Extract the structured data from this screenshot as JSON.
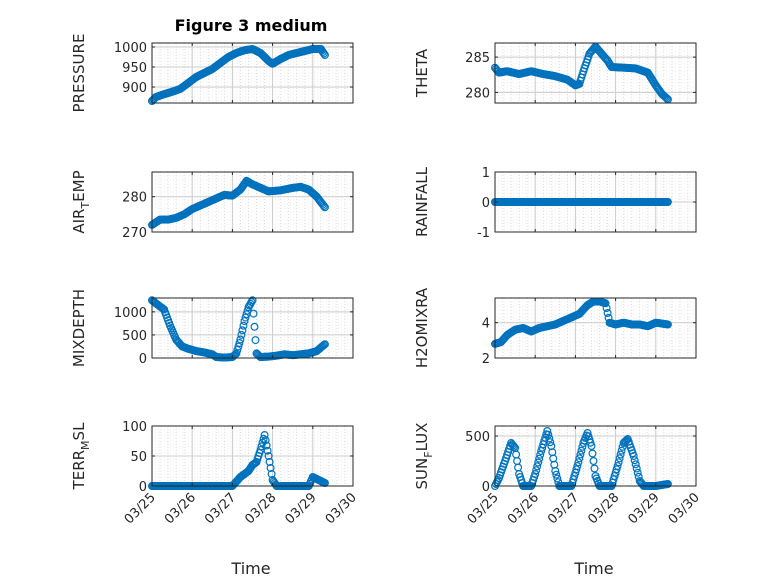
{
  "figure": {
    "title": "Figure 3 medium",
    "marker_color": "#0072bd",
    "x_ticks": [
      "03/25",
      "03/26",
      "03/27",
      "03/28",
      "03/29",
      "03/30"
    ],
    "xlabel": "Time"
  },
  "chart_data": [
    {
      "type": "scatter",
      "ylabel": "PRESSURE",
      "xlim": [
        0,
        5
      ],
      "ylim": [
        860,
        1010
      ],
      "yticks": [
        900,
        950,
        1000
      ],
      "grid": true,
      "keypoints": [
        [
          0,
          865
        ],
        [
          0.1,
          875
        ],
        [
          0.3,
          882
        ],
        [
          0.5,
          888
        ],
        [
          0.7,
          895
        ],
        [
          0.9,
          910
        ],
        [
          1.1,
          925
        ],
        [
          1.3,
          935
        ],
        [
          1.5,
          945
        ],
        [
          1.7,
          960
        ],
        [
          1.9,
          975
        ],
        [
          2.1,
          985
        ],
        [
          2.3,
          992
        ],
        [
          2.5,
          995
        ],
        [
          2.7,
          985
        ],
        [
          2.9,
          965
        ],
        [
          3.0,
          958
        ],
        [
          3.2,
          970
        ],
        [
          3.4,
          980
        ],
        [
          3.6,
          985
        ],
        [
          3.8,
          990
        ],
        [
          4.0,
          995
        ],
        [
          4.2,
          995
        ],
        [
          4.3,
          980
        ]
      ]
    },
    {
      "type": "scatter",
      "ylabel": "THETA",
      "xlim": [
        0,
        5
      ],
      "ylim": [
        278.5,
        287
      ],
      "yticks": [
        280,
        285
      ],
      "grid": true,
      "keypoints": [
        [
          0,
          283.5
        ],
        [
          0.1,
          282.8
        ],
        [
          0.3,
          283.0
        ],
        [
          0.6,
          282.6
        ],
        [
          0.9,
          283.0
        ],
        [
          1.2,
          282.6
        ],
        [
          1.5,
          282.3
        ],
        [
          1.8,
          281.8
        ],
        [
          2.0,
          281.0
        ],
        [
          2.1,
          281.2
        ],
        [
          2.2,
          283.0
        ],
        [
          2.35,
          285.5
        ],
        [
          2.5,
          286.5
        ],
        [
          2.65,
          285.5
        ],
        [
          2.8,
          284.5
        ],
        [
          2.9,
          283.6
        ],
        [
          3.2,
          283.5
        ],
        [
          3.5,
          283.4
        ],
        [
          3.8,
          282.8
        ],
        [
          4.0,
          281.0
        ],
        [
          4.15,
          279.8
        ],
        [
          4.3,
          279.0
        ]
      ]
    },
    {
      "type": "scatter",
      "ylabel": "AIR_TEMP",
      "xlim": [
        0,
        5
      ],
      "ylim": [
        270,
        287
      ],
      "yticks": [
        270,
        280
      ],
      "grid": true,
      "keypoints": [
        [
          0,
          272
        ],
        [
          0.2,
          273.5
        ],
        [
          0.4,
          273.5
        ],
        [
          0.6,
          274
        ],
        [
          0.8,
          275
        ],
        [
          1.0,
          276.5
        ],
        [
          1.2,
          277.5
        ],
        [
          1.4,
          278.5
        ],
        [
          1.6,
          279.5
        ],
        [
          1.8,
          280.5
        ],
        [
          2.0,
          280.3
        ],
        [
          2.2,
          282
        ],
        [
          2.35,
          284.5
        ],
        [
          2.5,
          283.5
        ],
        [
          2.7,
          282.5
        ],
        [
          2.9,
          281.5
        ],
        [
          3.2,
          281.8
        ],
        [
          3.5,
          282.5
        ],
        [
          3.7,
          282.8
        ],
        [
          3.9,
          282.0
        ],
        [
          4.1,
          280.0
        ],
        [
          4.3,
          277.0
        ]
      ]
    },
    {
      "type": "scatter",
      "ylabel": "RAINFALL",
      "xlim": [
        0,
        5
      ],
      "ylim": [
        -1,
        1
      ],
      "yticks": [
        -1,
        0,
        1
      ],
      "grid": true,
      "keypoints": [
        [
          0,
          0
        ],
        [
          4.3,
          0
        ]
      ]
    },
    {
      "type": "scatter",
      "ylabel": "MIXDEPTH",
      "xlim": [
        0,
        5
      ],
      "ylim": [
        0,
        1300
      ],
      "yticks": [
        0,
        500,
        1000
      ],
      "grid": true,
      "keypoints": [
        [
          0,
          1250
        ],
        [
          0.15,
          1150
        ],
        [
          0.3,
          1050
        ],
        [
          0.45,
          700
        ],
        [
          0.6,
          400
        ],
        [
          0.75,
          250
        ],
        [
          0.9,
          200
        ],
        [
          1.1,
          150
        ],
        [
          1.3,
          120
        ],
        [
          1.5,
          80
        ],
        [
          1.6,
          20
        ],
        [
          1.8,
          10
        ],
        [
          2.0,
          20
        ],
        [
          2.1,
          100
        ],
        [
          2.2,
          400
        ],
        [
          2.3,
          800
        ],
        [
          2.4,
          1100
        ],
        [
          2.5,
          1250
        ],
        [
          2.6,
          100
        ],
        [
          2.7,
          20
        ],
        [
          2.9,
          30
        ],
        [
          3.1,
          50
        ],
        [
          3.3,
          80
        ],
        [
          3.5,
          60
        ],
        [
          3.7,
          80
        ],
        [
          3.9,
          100
        ],
        [
          4.1,
          150
        ],
        [
          4.3,
          300
        ]
      ]
    },
    {
      "type": "scatter",
      "ylabel": "H2OMIXRA",
      "xlim": [
        0,
        5
      ],
      "ylim": [
        2,
        5.4
      ],
      "yticks": [
        2,
        4
      ],
      "grid": true,
      "keypoints": [
        [
          0,
          2.8
        ],
        [
          0.15,
          2.9
        ],
        [
          0.3,
          3.3
        ],
        [
          0.5,
          3.6
        ],
        [
          0.7,
          3.7
        ],
        [
          0.9,
          3.5
        ],
        [
          1.1,
          3.7
        ],
        [
          1.3,
          3.8
        ],
        [
          1.5,
          3.9
        ],
        [
          1.7,
          4.1
        ],
        [
          1.9,
          4.3
        ],
        [
          2.1,
          4.5
        ],
        [
          2.3,
          5.0
        ],
        [
          2.45,
          5.2
        ],
        [
          2.6,
          5.2
        ],
        [
          2.75,
          5.1
        ],
        [
          2.85,
          4.0
        ],
        [
          3.0,
          3.9
        ],
        [
          3.2,
          4.0
        ],
        [
          3.4,
          3.9
        ],
        [
          3.6,
          3.9
        ],
        [
          3.8,
          3.8
        ],
        [
          4.0,
          4.0
        ],
        [
          4.3,
          3.9
        ]
      ]
    },
    {
      "type": "scatter",
      "ylabel": "TERR_MSL",
      "xlim": [
        0,
        5
      ],
      "ylim": [
        0,
        100
      ],
      "yticks": [
        0,
        50,
        100
      ],
      "grid": true,
      "keypoints": [
        [
          0,
          0
        ],
        [
          2.0,
          0
        ],
        [
          2.2,
          15
        ],
        [
          2.4,
          25
        ],
        [
          2.5,
          35
        ],
        [
          2.6,
          40
        ],
        [
          2.7,
          60
        ],
        [
          2.8,
          85
        ],
        [
          2.9,
          50
        ],
        [
          3.0,
          10
        ],
        [
          3.1,
          0
        ],
        [
          3.9,
          0
        ],
        [
          4.0,
          15
        ],
        [
          4.15,
          10
        ],
        [
          4.3,
          5
        ]
      ]
    },
    {
      "type": "scatter",
      "ylabel": "SUN_FLUX",
      "xlim": [
        0,
        5
      ],
      "ylim": [
        0,
        600
      ],
      "yticks": [
        0,
        500
      ],
      "grid": true,
      "keypoints": [
        [
          0,
          0
        ],
        [
          0.1,
          80
        ],
        [
          0.25,
          250
        ],
        [
          0.4,
          430
        ],
        [
          0.5,
          380
        ],
        [
          0.6,
          120
        ],
        [
          0.7,
          0
        ],
        [
          0.9,
          0
        ],
        [
          1.0,
          120
        ],
        [
          1.15,
          350
        ],
        [
          1.3,
          550
        ],
        [
          1.4,
          400
        ],
        [
          1.5,
          150
        ],
        [
          1.6,
          0
        ],
        [
          1.9,
          0
        ],
        [
          2.05,
          200
        ],
        [
          2.2,
          430
        ],
        [
          2.3,
          530
        ],
        [
          2.4,
          400
        ],
        [
          2.5,
          100
        ],
        [
          2.6,
          0
        ],
        [
          2.9,
          0
        ],
        [
          3.05,
          200
        ],
        [
          3.2,
          430
        ],
        [
          3.3,
          470
        ],
        [
          3.45,
          300
        ],
        [
          3.6,
          50
        ],
        [
          3.7,
          0
        ],
        [
          4.0,
          0
        ],
        [
          4.3,
          20
        ]
      ]
    }
  ]
}
